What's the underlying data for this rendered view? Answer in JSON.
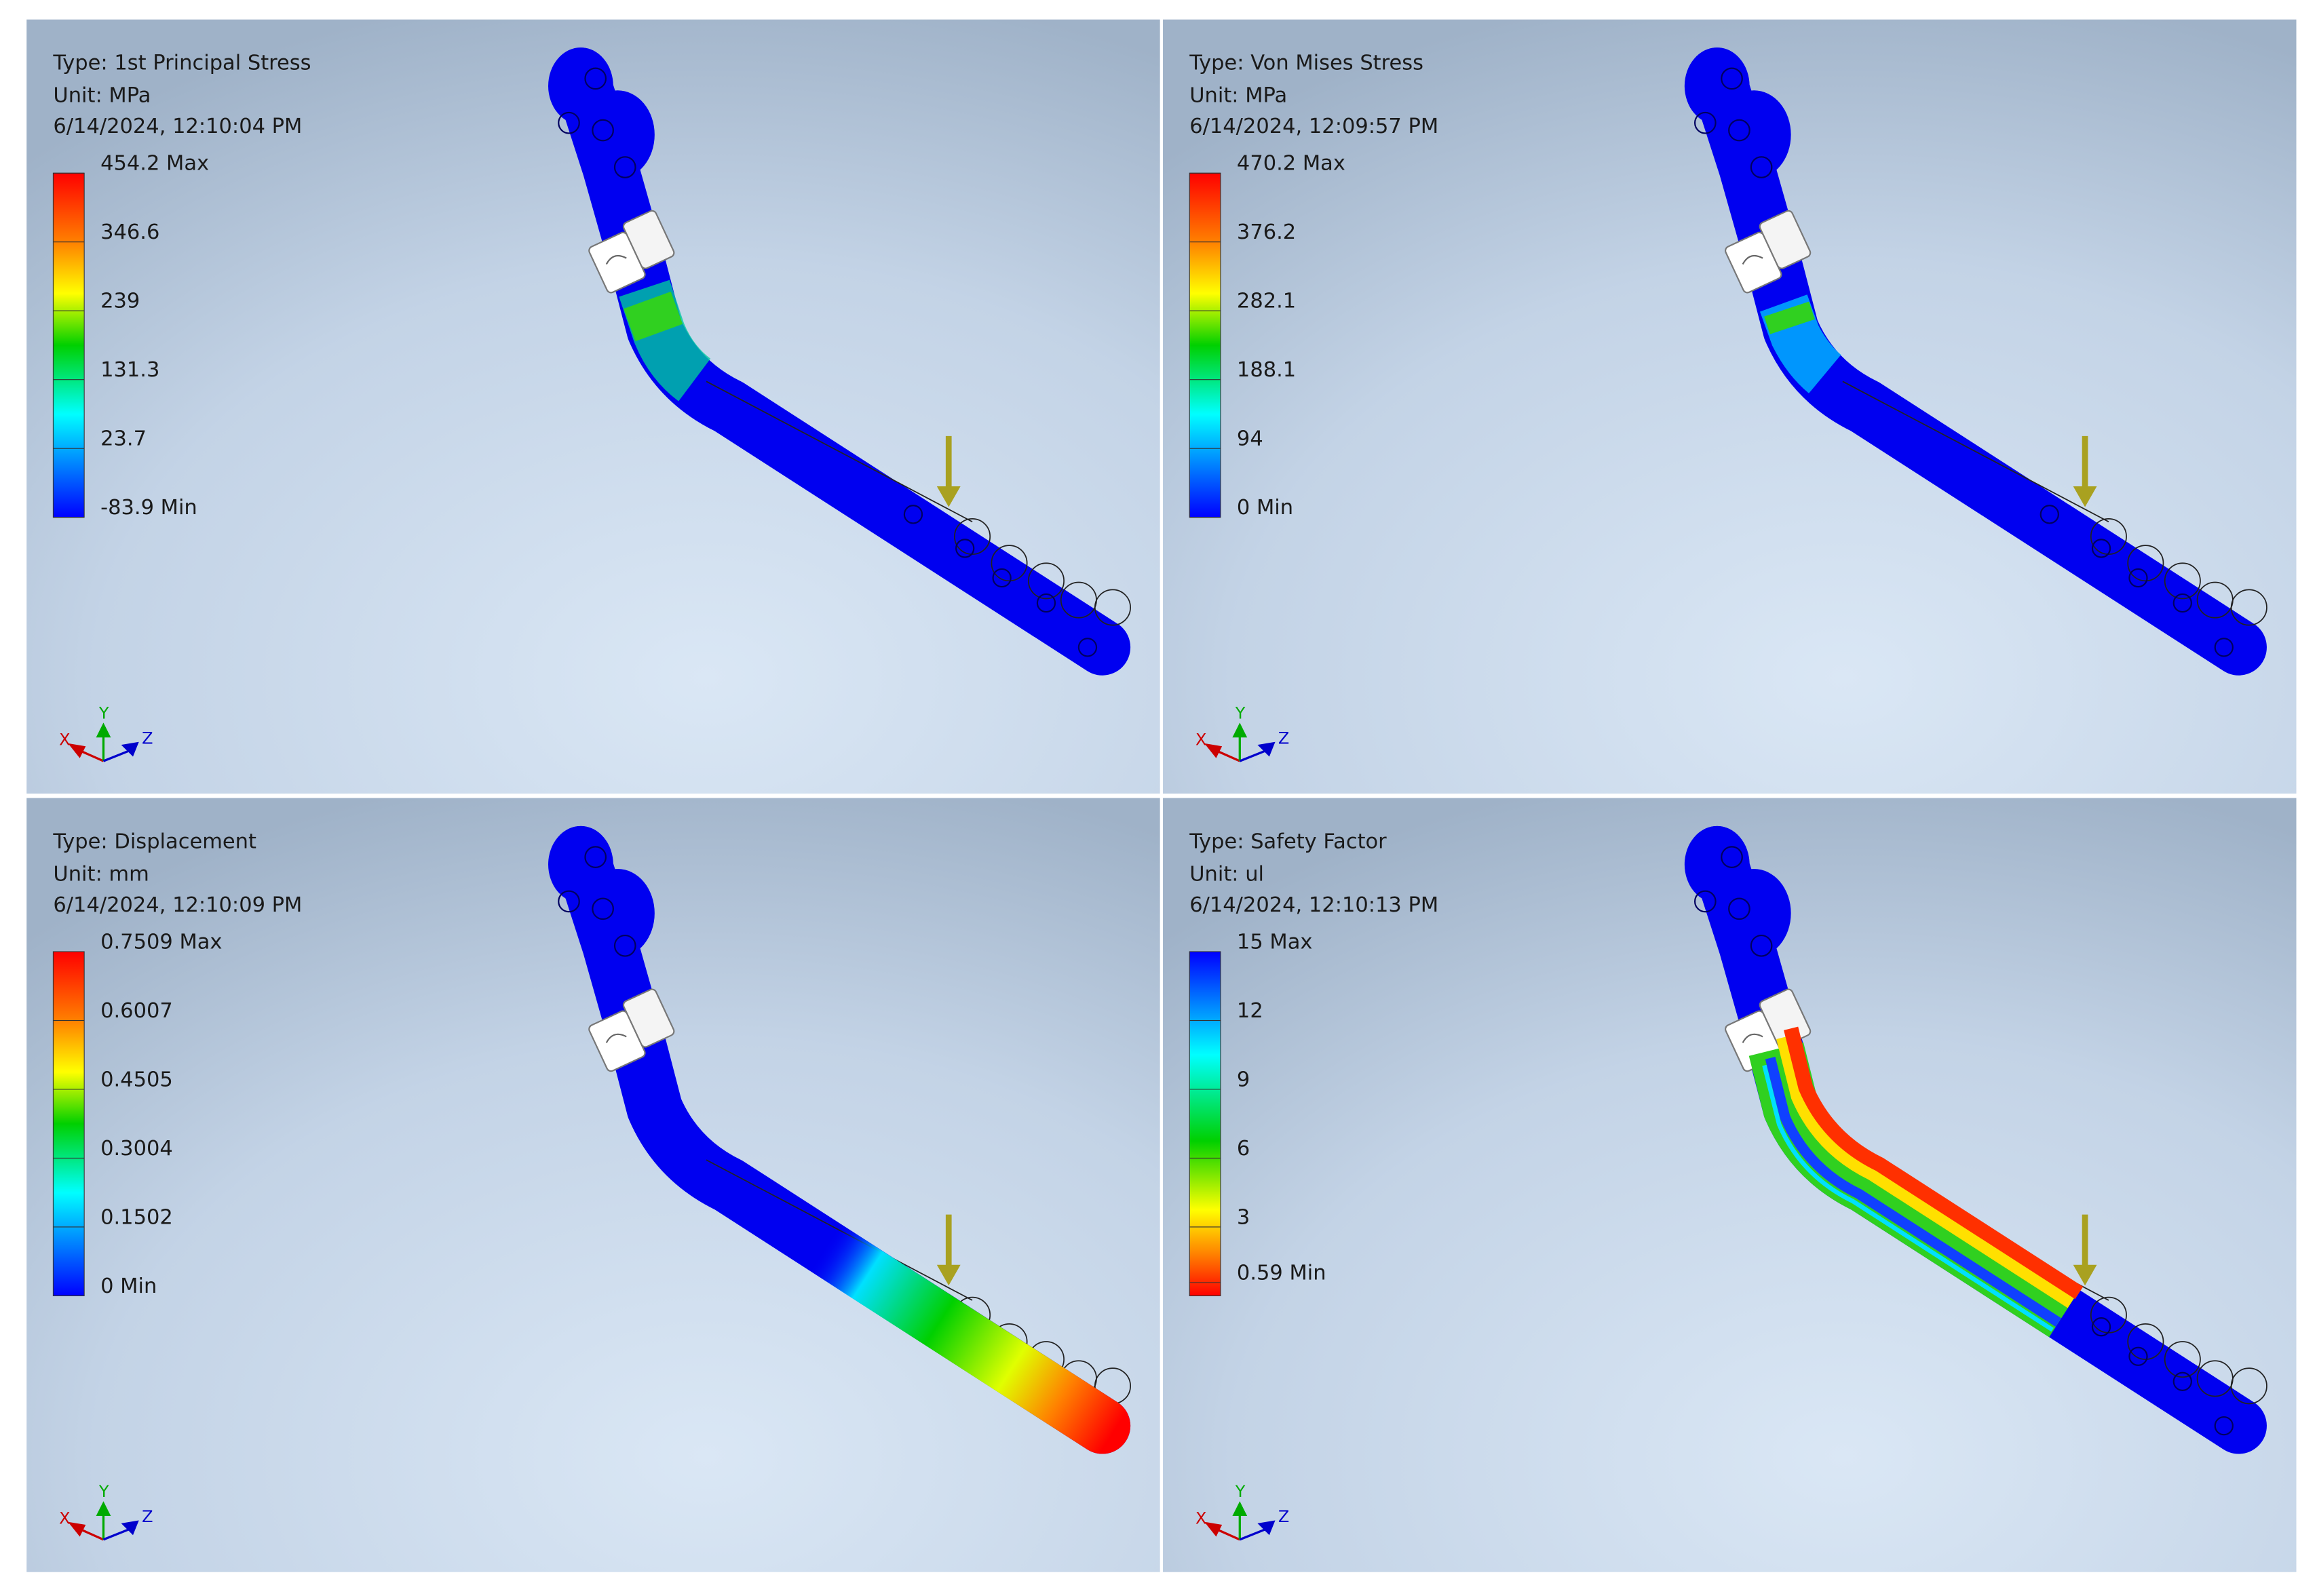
{
  "panels": [
    {
      "type": "Type: 1st Principal Stress",
      "unit": "Unit: MPa",
      "timestamp": "6/14/2024, 12:10:04 PM",
      "legend": [
        "454.2 Max",
        "346.6",
        "239",
        "131.3",
        "23.7",
        "-83.9 Min"
      ],
      "triad": {
        "x": "X",
        "y": "Y",
        "z": "Z"
      }
    },
    {
      "type": "Type: Von Mises Stress",
      "unit": "Unit: MPa",
      "timestamp": "6/14/2024, 12:09:57 PM",
      "legend": [
        "470.2 Max",
        "376.2",
        "282.1",
        "188.1",
        "94",
        "0 Min"
      ],
      "triad": {
        "x": "X",
        "y": "Y",
        "z": "Z"
      }
    },
    {
      "type": "Type: Displacement",
      "unit": "Unit: mm",
      "timestamp": "6/14/2024, 12:10:09 PM",
      "legend": [
        "0.7509 Max",
        "0.6007",
        "0.4505",
        "0.3004",
        "0.1502",
        "0 Min"
      ],
      "triad": {
        "x": "X",
        "y": "Y",
        "z": "Z"
      }
    },
    {
      "type": "Type: Safety Factor",
      "unit": "Unit: ul",
      "timestamp": "6/14/2024, 12:10:13 PM",
      "legend": [
        "15 Max",
        "12",
        "9",
        "6",
        "3",
        "0.59 Min"
      ],
      "triad": {
        "x": "X",
        "y": "Y",
        "z": "Z"
      }
    }
  ]
}
